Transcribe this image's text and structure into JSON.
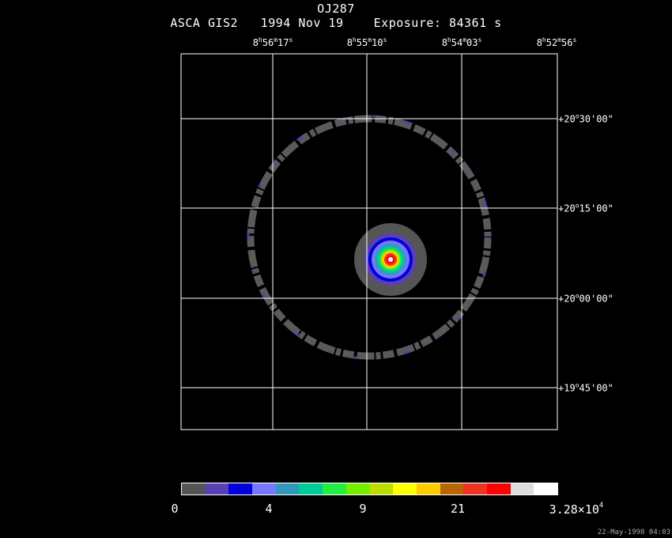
{
  "header": {
    "object": "OJ287",
    "info": "ASCA GIS2   1994 Nov 19    Exposure: 84361 s"
  },
  "ra_ticks": [
    {
      "h": "8",
      "m": "56",
      "s": "17"
    },
    {
      "h": "8",
      "m": "55",
      "s": "10"
    },
    {
      "h": "8",
      "m": "54",
      "s": "03"
    },
    {
      "h": "8",
      "m": "52",
      "s": "56"
    }
  ],
  "dec_ticks": [
    {
      "d": "+20",
      "m": "30",
      "s": "00"
    },
    {
      "d": "+20",
      "m": "15",
      "s": "00"
    },
    {
      "d": "+20",
      "m": "00",
      "s": "00"
    },
    {
      "d": "+19",
      "m": "45",
      "s": "00"
    }
  ],
  "colorbar": {
    "colors": [
      "#555555",
      "#5b3fb4",
      "#0000dd",
      "#7777ff",
      "#3399bb",
      "#00cc99",
      "#22ee44",
      "#77ee00",
      "#bbdd00",
      "#ffff00",
      "#ffcc00",
      "#bb6600",
      "#ee3322",
      "#ff0000",
      "#dddddd",
      "#ffffff"
    ],
    "labels": [
      {
        "text": "0"
      },
      {
        "text": "4"
      },
      {
        "text": "9"
      },
      {
        "text": "21"
      },
      {
        "text": "3.28×10",
        "sup": "4"
      }
    ]
  },
  "timestamp": "22-May-1998 04:03"
}
